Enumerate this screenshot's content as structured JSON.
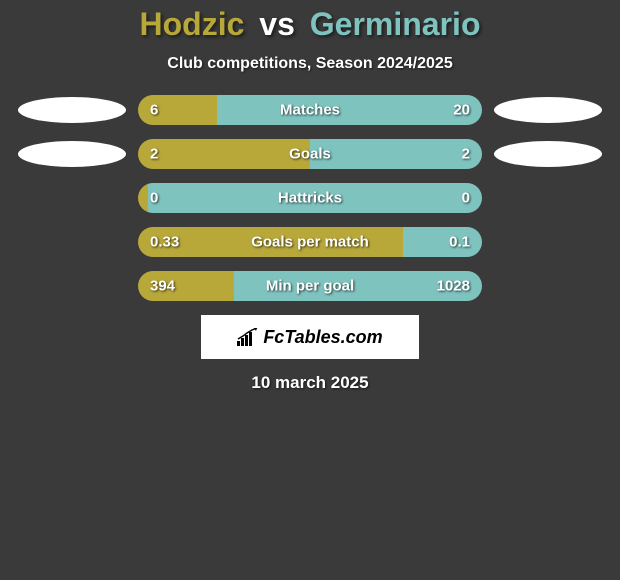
{
  "background_color": "#3a3a3a",
  "title": {
    "player1": "Hodzic",
    "vs": "vs",
    "player2": "Germinario",
    "player1_color": "#b8a83a",
    "vs_color": "#ffffff",
    "player2_color": "#7fc3bf",
    "fontsize": 32
  },
  "subtitle": {
    "text": "Club competitions, Season 2024/2025",
    "fontsize": 16,
    "color": "#ffffff"
  },
  "left_color": "#b8a83a",
  "right_color": "#7fc3bf",
  "ellipse_color": "#ffffff",
  "bars": [
    {
      "label": "Matches",
      "left_value": "6",
      "right_value": "20",
      "left_pct": 23,
      "right_pct": 77,
      "ellipse_left": true,
      "ellipse_right": true
    },
    {
      "label": "Goals",
      "left_value": "2",
      "right_value": "2",
      "left_pct": 50,
      "right_pct": 50,
      "ellipse_left": true,
      "ellipse_right": true
    },
    {
      "label": "Hattricks",
      "left_value": "0",
      "right_value": "0",
      "left_pct": 3,
      "right_pct": 97,
      "ellipse_left": false,
      "ellipse_right": false
    },
    {
      "label": "Goals per match",
      "left_value": "0.33",
      "right_value": "0.1",
      "left_pct": 77,
      "right_pct": 23,
      "ellipse_left": false,
      "ellipse_right": false
    },
    {
      "label": "Min per goal",
      "left_value": "394",
      "right_value": "1028",
      "left_pct": 28,
      "right_pct": 72,
      "ellipse_left": false,
      "ellipse_right": false
    }
  ],
  "logo": {
    "text": "FcTables.com",
    "background": "#ffffff",
    "text_color": "#000000"
  },
  "date": {
    "text": "10 march 2025",
    "color": "#ffffff",
    "fontsize": 17
  }
}
